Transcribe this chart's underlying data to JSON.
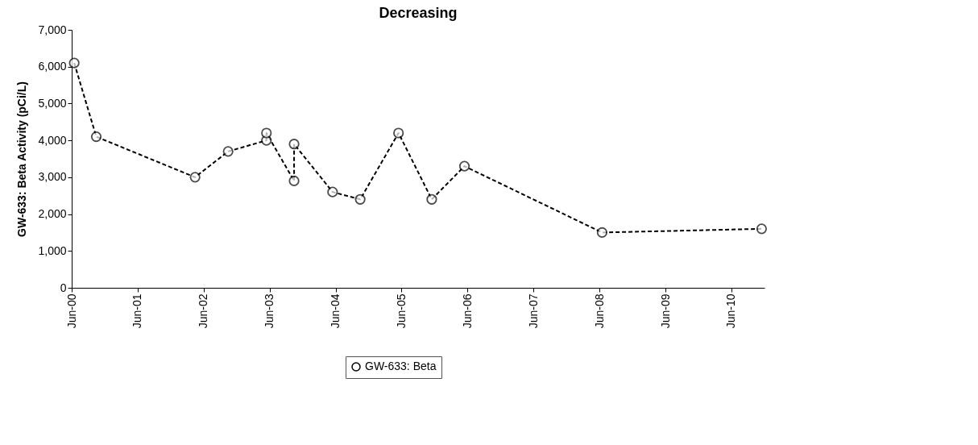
{
  "chart_data": {
    "type": "line",
    "title": "Decreasing",
    "ylabel": "GW-633:  Beta Activity (pCi/L)",
    "x": [
      "2000-06-15",
      "2000-10-15",
      "2002-04-15",
      "2002-10-15",
      "2003-05-15",
      "2003-05-15",
      "2003-10-15",
      "2003-10-15",
      "2004-05-15",
      "2004-10-15",
      "2005-05-15",
      "2005-11-15",
      "2006-05-15",
      "2008-06-15",
      "2010-11-15"
    ],
    "series": [
      {
        "name": "GW-633: Beta",
        "color": "#000000",
        "values": [
          6100,
          4100,
          3000,
          3700,
          4000,
          4200,
          2900,
          3900,
          2600,
          2400,
          4200,
          2400,
          3300,
          1500,
          1600
        ]
      }
    ],
    "xlim": [
      "2000-06-01",
      "2010-12-01"
    ],
    "xticks": [
      {
        "value": "2000-06-01",
        "label": "Jun-00"
      },
      {
        "value": "2001-06-01",
        "label": "Jun-01"
      },
      {
        "value": "2002-06-01",
        "label": "Jun-02"
      },
      {
        "value": "2003-06-01",
        "label": "Jun-03"
      },
      {
        "value": "2004-06-01",
        "label": "Jun-04"
      },
      {
        "value": "2005-06-01",
        "label": "Jun-05"
      },
      {
        "value": "2006-06-01",
        "label": "Jun-06"
      },
      {
        "value": "2007-06-01",
        "label": "Jun-07"
      },
      {
        "value": "2008-06-01",
        "label": "Jun-08"
      },
      {
        "value": "2009-06-01",
        "label": "Jun-09"
      },
      {
        "value": "2010-06-01",
        "label": "Jun-10"
      }
    ],
    "ylim": [
      0,
      7000
    ],
    "yticks": [
      {
        "value": 0,
        "label": "0"
      },
      {
        "value": 1000,
        "label": "1,000"
      },
      {
        "value": 2000,
        "label": "2,000"
      },
      {
        "value": 3000,
        "label": "3,000"
      },
      {
        "value": 4000,
        "label": "4,000"
      },
      {
        "value": 5000,
        "label": "5,000"
      },
      {
        "value": 6000,
        "label": "6,000"
      },
      {
        "value": 7000,
        "label": "7,000"
      }
    ],
    "grid": false,
    "legend": "bottom",
    "marker": "circle",
    "line_style": "dashed"
  }
}
